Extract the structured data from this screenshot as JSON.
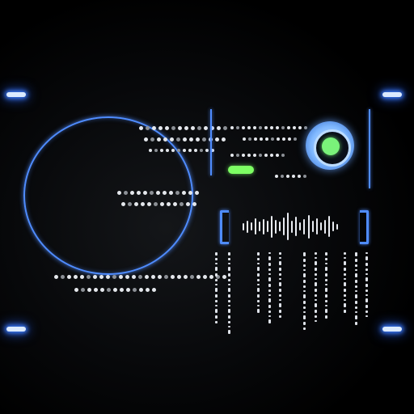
{
  "colors": {
    "accent": "#4f8cff",
    "glow": "#3d7dff",
    "status_green": "#7dff63",
    "text": "#e4e7ec",
    "background": "#000000"
  },
  "icons": {
    "dial": "radial-dial-icon",
    "waveform": "audio-waveform-icon"
  },
  "waveform": {
    "levels": [
      0.25,
      0.45,
      0.3,
      0.6,
      0.35,
      0.55,
      0.4,
      0.8,
      0.5,
      0.35,
      0.65,
      1.0,
      0.45,
      0.7,
      0.3,
      0.55,
      0.85,
      0.4,
      0.6,
      0.3,
      0.5,
      0.75,
      0.35,
      0.2
    ]
  }
}
